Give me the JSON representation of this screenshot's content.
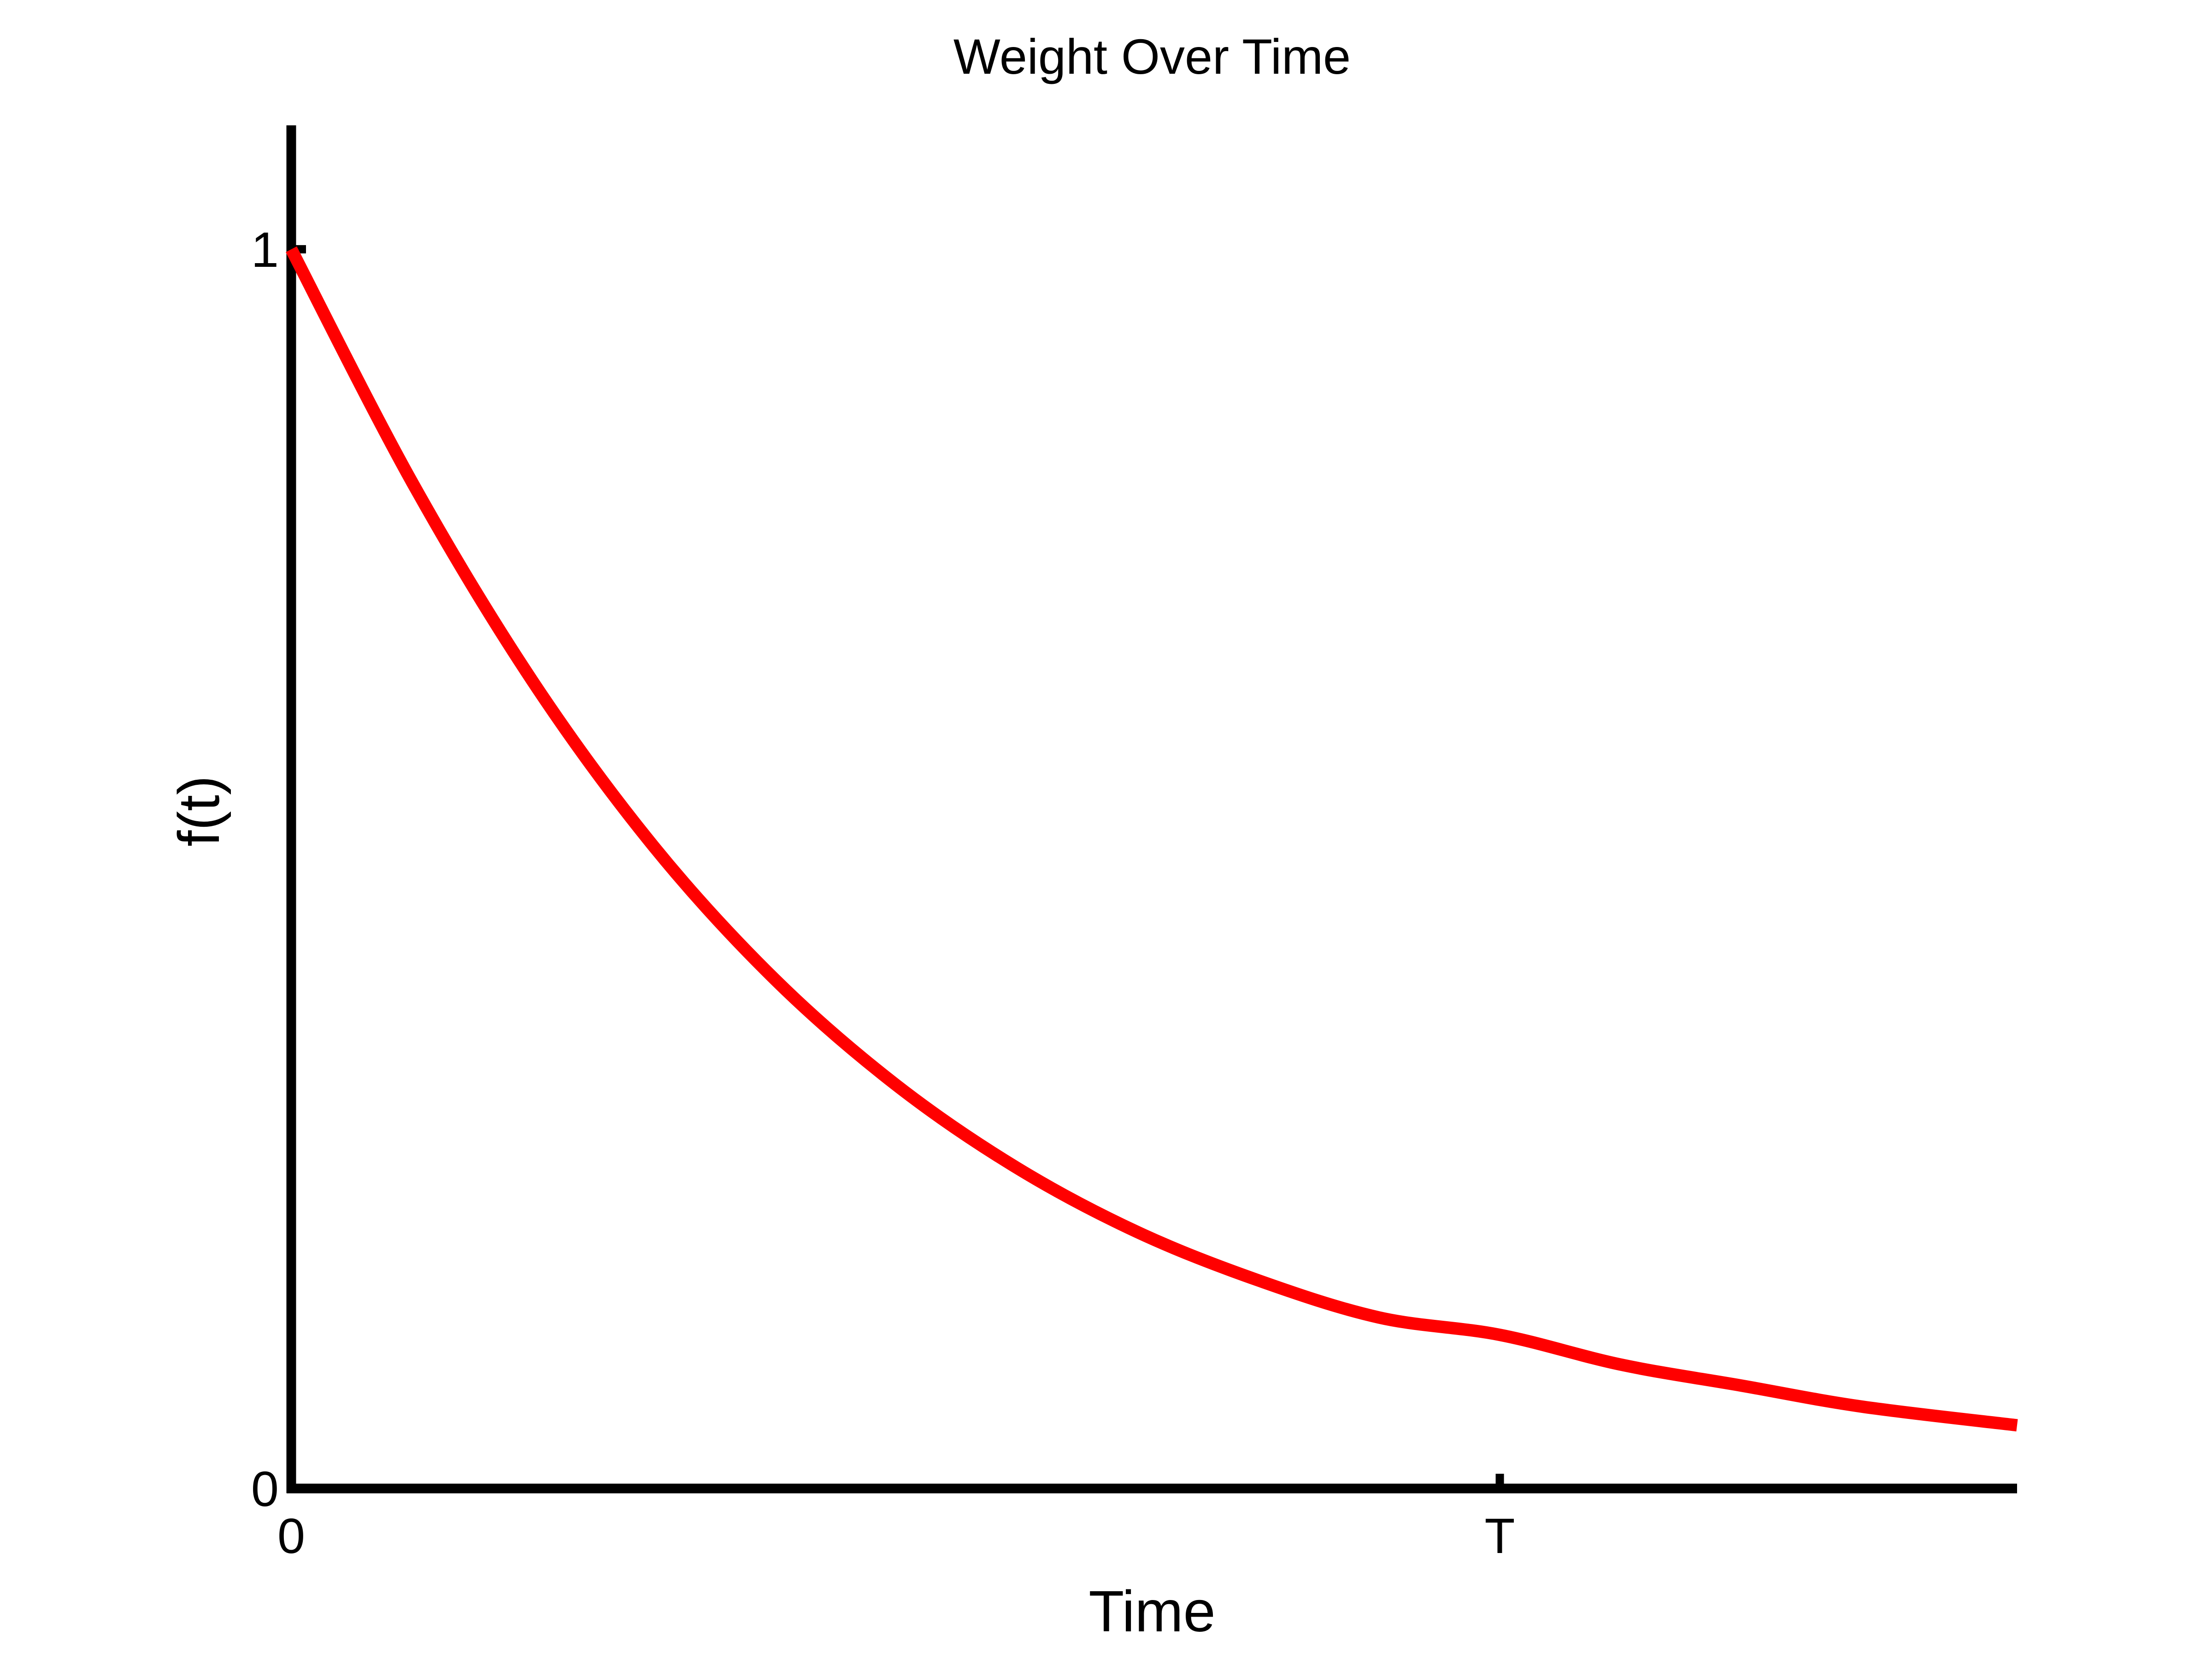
{
  "chart_data": {
    "type": "line",
    "title": "Weight Over Time",
    "xlabel": "Time",
    "ylabel": "f(t)",
    "xlim": [
      0,
      1.428
    ],
    "ylim": [
      0,
      1.1
    ],
    "x_ticks": [
      {
        "value": 0,
        "label": "0"
      },
      {
        "value": 1,
        "label": "T"
      }
    ],
    "y_ticks": [
      {
        "value": 0,
        "label": "0"
      },
      {
        "value": 1,
        "label": "1"
      }
    ],
    "grid": false,
    "series": [
      {
        "color": "#ff0000",
        "x": [
          0,
          0.1,
          0.2,
          0.3,
          0.4,
          0.5,
          0.6,
          0.7,
          0.8,
          0.9,
          1.0,
          1.1,
          1.2,
          1.3,
          1.428
        ],
        "y": [
          1.0,
          0.812,
          0.651,
          0.518,
          0.411,
          0.326,
          0.259,
          0.207,
          0.168,
          0.138,
          0.124,
          0.1,
          0.083,
          0.066,
          0.051
        ]
      }
    ]
  }
}
